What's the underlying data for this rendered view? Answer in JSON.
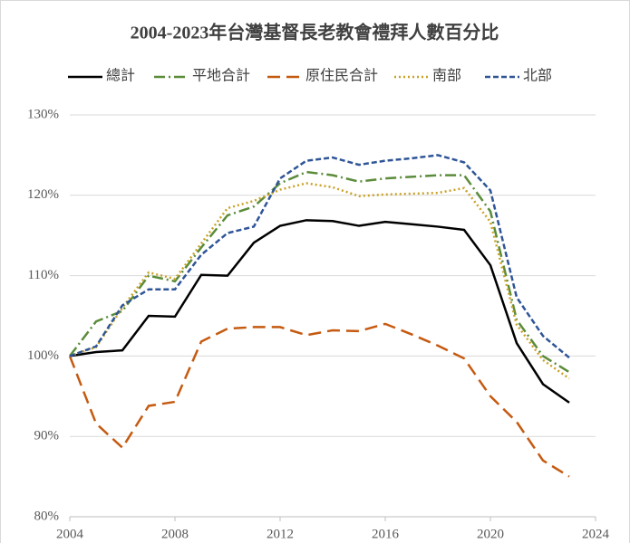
{
  "chart_data": {
    "type": "line",
    "title": "2004-2023年台灣基督長老教會禮拜人數百分比",
    "x": [
      2004,
      2005,
      2006,
      2007,
      2008,
      2009,
      2010,
      2011,
      2012,
      2013,
      2014,
      2015,
      2016,
      2017,
      2018,
      2019,
      2020,
      2021,
      2022,
      2023
    ],
    "series": [
      {
        "name": "總計",
        "color": "#000000",
        "values": [
          100,
          100.5,
          100.7,
          105,
          104.9,
          110.1,
          110,
          114.1,
          116.2,
          116.9,
          116.8,
          116.2,
          116.7,
          116.4,
          116.1,
          115.7,
          111.3,
          101.6,
          96.5,
          94.2
        ]
      },
      {
        "name": "平地合計",
        "color": "#5b8c3a",
        "values": [
          100,
          104.3,
          105.6,
          110,
          109.3,
          113.5,
          117.5,
          118.6,
          121.5,
          122.9,
          122.5,
          121.7,
          122.1,
          122.3,
          122.5,
          122.5,
          118,
          104.5,
          100,
          98
        ]
      },
      {
        "name": "原住民合計",
        "color": "#c55a11",
        "values": [
          100,
          91.6,
          88.6,
          93.8,
          94.3,
          101.8,
          103.4,
          103.6,
          103.6,
          102.6,
          103.2,
          103.1,
          104,
          102.7,
          101.3,
          99.7,
          95,
          91.8,
          87,
          85
        ]
      },
      {
        "name": "南部",
        "color": "#c9a227",
        "values": [
          100,
          101.1,
          106,
          110.4,
          109.6,
          114,
          118.4,
          119.3,
          120.7,
          121.5,
          121,
          119.9,
          120.1,
          120.2,
          120.3,
          120.9,
          116.7,
          103.9,
          99.5,
          97.2
        ]
      },
      {
        "name": "北部",
        "color": "#2f5597",
        "values": [
          100,
          101.2,
          106.3,
          108.3,
          108.3,
          112.6,
          115.3,
          116.1,
          122.1,
          124.3,
          124.7,
          123.8,
          124.3,
          124.6,
          125,
          124.1,
          120.6,
          107.3,
          102.5,
          99.8
        ]
      }
    ],
    "xlim": [
      2004,
      2024
    ],
    "xticks": [
      2004,
      2008,
      2012,
      2016,
      2020,
      2024
    ],
    "ylim": [
      80,
      130
    ],
    "yticks": [
      {
        "value": 80,
        "label": "80%"
      },
      {
        "value": 90,
        "label": "90%"
      },
      {
        "value": 100,
        "label": "100%"
      },
      {
        "value": 110,
        "label": "110%"
      },
      {
        "value": 120,
        "label": "120%"
      },
      {
        "value": 130,
        "label": "130%"
      }
    ],
    "grid": true,
    "legend": "top"
  }
}
